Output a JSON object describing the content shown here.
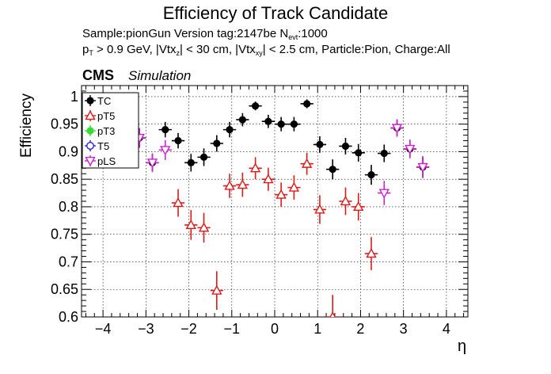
{
  "chart_data": {
    "type": "scatter",
    "title": "Efficiency of Track Candidate",
    "subtitle_line1": "Sample:pionGun   Version tag:2147be  N",
    "subtitle_line1_sub": "evt",
    "subtitle_line1_tail": ":1000",
    "subtitle_line2_parts": [
      "p",
      "T",
      " > 0.9 GeV, |Vtx",
      "z",
      "| < 30 cm, |Vtx",
      "xy",
      "| < 2.5 cm, Particle:Pion, Charge:All"
    ],
    "cms_label": "CMS",
    "simulation_label": "Simulation",
    "xlabel": "η",
    "ylabel": "Efficiency",
    "xlim": [
      -4.5,
      4.5
    ],
    "ylim": [
      0.6,
      1.02
    ],
    "x_ticks": [
      -4,
      -3,
      -2,
      -1,
      0,
      1,
      2,
      3,
      4
    ],
    "x_tick_labels": [
      "−4",
      "−3",
      "−2",
      "−1",
      "0",
      "1",
      "2",
      "3",
      "4"
    ],
    "y_ticks": [
      0.6,
      0.65,
      0.7,
      0.75,
      0.8,
      0.85,
      0.9,
      0.95,
      1.0
    ],
    "y_tick_labels": [
      "0.6",
      "0.65",
      "0.7",
      "0.75",
      "0.8",
      "0.85",
      "0.9",
      "0.95",
      "1"
    ],
    "grid": true,
    "legend_position": "top-left",
    "x_half_width": 0.15,
    "series": [
      {
        "name": "TC",
        "color": "#000000",
        "marker": "filled-circle",
        "points": [
          {
            "x": -3.15,
            "y": 0.925,
            "err": 0.015
          },
          {
            "x": -2.85,
            "y": 0.88,
            "err": 0.015
          },
          {
            "x": -2.55,
            "y": 0.94,
            "err": 0.014
          },
          {
            "x": -2.25,
            "y": 0.92,
            "err": 0.014
          },
          {
            "x": -1.95,
            "y": 0.88,
            "err": 0.016
          },
          {
            "x": -1.65,
            "y": 0.89,
            "err": 0.016
          },
          {
            "x": -1.35,
            "y": 0.915,
            "err": 0.015
          },
          {
            "x": -1.05,
            "y": 0.94,
            "err": 0.014
          },
          {
            "x": -0.75,
            "y": 0.958,
            "err": 0.012
          },
          {
            "x": -0.45,
            "y": 0.983,
            "err": 0.008
          },
          {
            "x": -0.15,
            "y": 0.955,
            "err": 0.012
          },
          {
            "x": 0.15,
            "y": 0.95,
            "err": 0.013
          },
          {
            "x": 0.45,
            "y": 0.95,
            "err": 0.013
          },
          {
            "x": 0.75,
            "y": 0.987,
            "err": 0.008
          },
          {
            "x": 1.05,
            "y": 0.913,
            "err": 0.015
          },
          {
            "x": 1.35,
            "y": 0.868,
            "err": 0.018
          },
          {
            "x": 1.65,
            "y": 0.91,
            "err": 0.015
          },
          {
            "x": 1.95,
            "y": 0.898,
            "err": 0.016
          },
          {
            "x": 2.25,
            "y": 0.858,
            "err": 0.018
          },
          {
            "x": 2.55,
            "y": 0.897,
            "err": 0.016
          },
          {
            "x": 2.85,
            "y": 0.943,
            "err": 0.014
          },
          {
            "x": 3.15,
            "y": 0.905,
            "err": 0.015
          },
          {
            "x": 3.45,
            "y": 0.872,
            "err": 0.018
          }
        ]
      },
      {
        "name": "pT5",
        "color": "#dd1a1a",
        "marker": "open-triangle",
        "points": [
          {
            "x": -2.25,
            "y": 0.807,
            "err": 0.025
          },
          {
            "x": -1.95,
            "y": 0.767,
            "err": 0.027
          },
          {
            "x": -1.65,
            "y": 0.762,
            "err": 0.027
          },
          {
            "x": -1.35,
            "y": 0.648,
            "err": 0.035
          },
          {
            "x": -1.05,
            "y": 0.838,
            "err": 0.022
          },
          {
            "x": -0.75,
            "y": 0.84,
            "err": 0.022
          },
          {
            "x": -0.45,
            "y": 0.87,
            "err": 0.02
          },
          {
            "x": -0.15,
            "y": 0.85,
            "err": 0.021
          },
          {
            "x": 0.15,
            "y": 0.822,
            "err": 0.022
          },
          {
            "x": 0.45,
            "y": 0.835,
            "err": 0.022
          },
          {
            "x": 0.75,
            "y": 0.878,
            "err": 0.02
          },
          {
            "x": 1.05,
            "y": 0.795,
            "err": 0.026
          },
          {
            "x": 1.35,
            "y": 0.6,
            "err": 0.04
          },
          {
            "x": 1.65,
            "y": 0.81,
            "err": 0.025
          },
          {
            "x": 1.95,
            "y": 0.8,
            "err": 0.025
          },
          {
            "x": 2.25,
            "y": 0.715,
            "err": 0.03
          }
        ]
      },
      {
        "name": "pT3",
        "color": "#33dd33",
        "marker": "filled-circle",
        "points": []
      },
      {
        "name": "T5",
        "color": "#2222dd",
        "marker": "open-circle",
        "points": []
      },
      {
        "name": "pLS",
        "color": "#cc22cc",
        "marker": "open-triangle-down",
        "points": [
          {
            "x": -3.15,
            "y": 0.925,
            "err": 0.018
          },
          {
            "x": -2.85,
            "y": 0.88,
            "err": 0.017
          },
          {
            "x": -2.55,
            "y": 0.903,
            "err": 0.018
          },
          {
            "x": 2.55,
            "y": 0.825,
            "err": 0.022
          },
          {
            "x": 2.85,
            "y": 0.943,
            "err": 0.016
          },
          {
            "x": 3.15,
            "y": 0.905,
            "err": 0.017
          },
          {
            "x": 3.45,
            "y": 0.872,
            "err": 0.02
          }
        ]
      }
    ]
  }
}
